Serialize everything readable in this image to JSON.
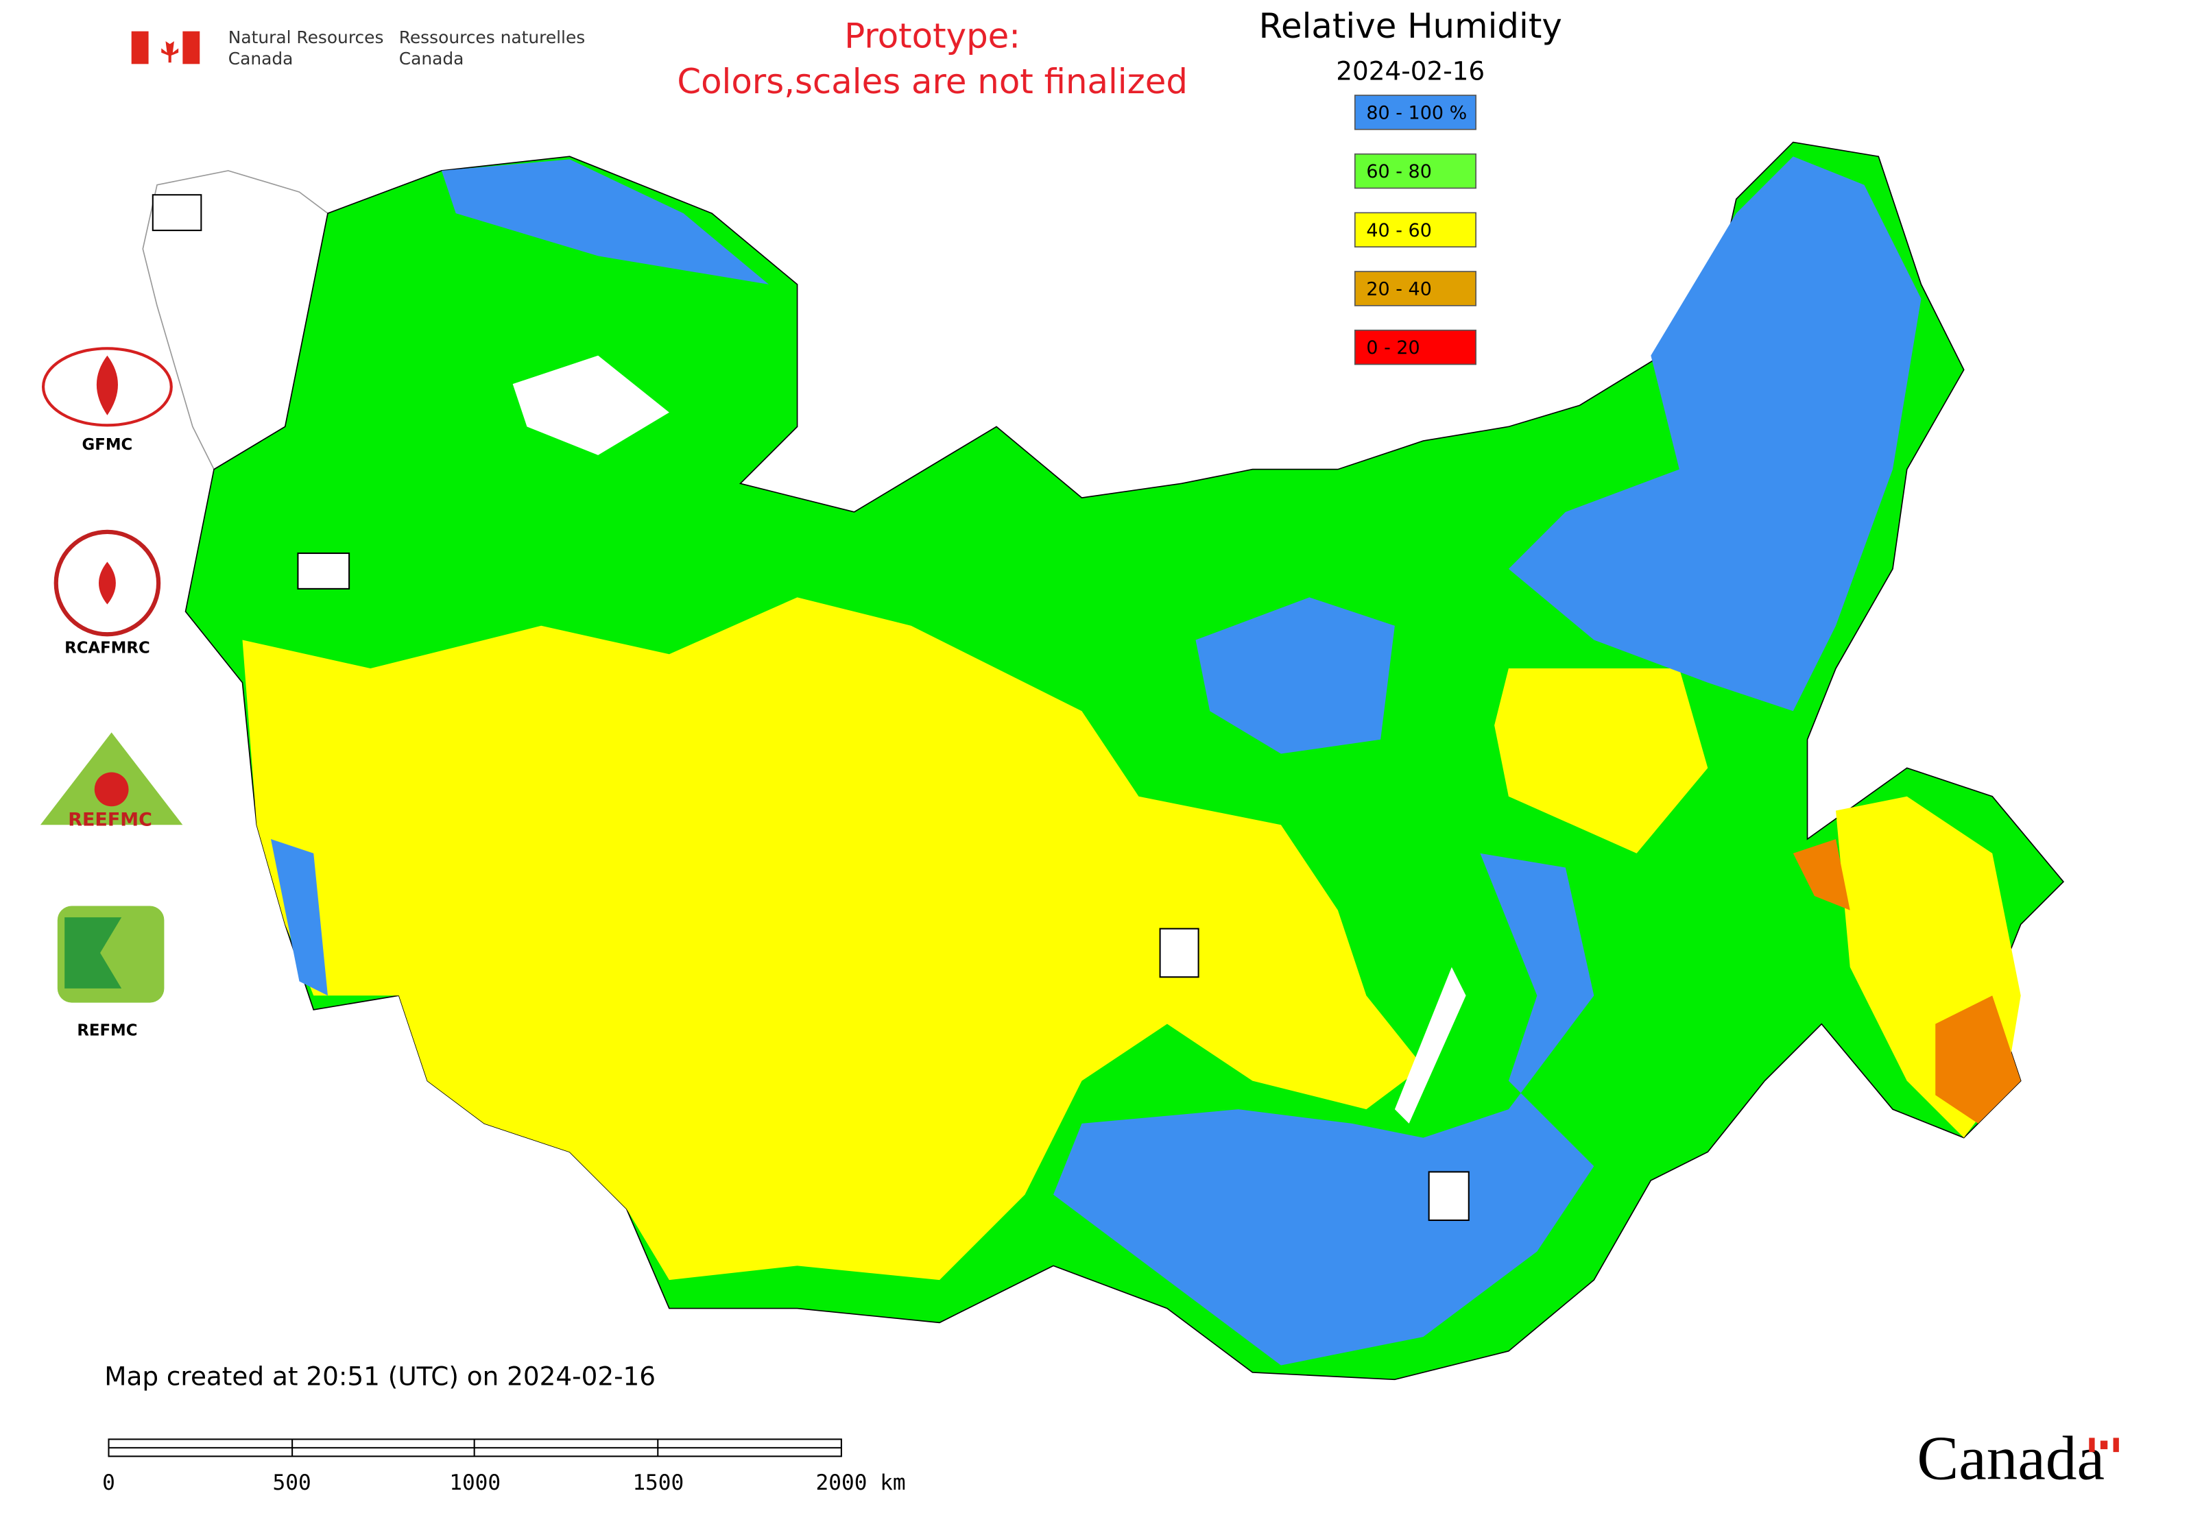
{
  "header": {
    "agency_en": [
      "Natural Resources",
      "Canada"
    ],
    "agency_fr": [
      "Ressources naturelles",
      "Canada"
    ],
    "notice": [
      "Prototype:",
      "Colors,scales are not finalized"
    ]
  },
  "map": {
    "title": "Relative Humidity",
    "date": "2024-02-16"
  },
  "legend": [
    {
      "label": "80 - 100 %",
      "color": "#3d8ff0"
    },
    {
      "label": "60 - 80",
      "color": "#66ff33"
    },
    {
      "label": "40 - 60",
      "color": "#ffff00"
    },
    {
      "label": "20 - 40",
      "color": "#e0a000"
    },
    {
      "label": "0 - 20",
      "color": "#ff0000"
    }
  ],
  "logos": [
    "GFMC",
    "RCAFMRC",
    "REEFMC",
    "REFMC"
  ],
  "footer": {
    "created": "Map created at 20:51 (UTC) on 2024-02-16",
    "scale_labels": [
      "0",
      "500",
      "1000",
      "1500",
      "2000 km"
    ],
    "wordmark": "Canada"
  }
}
